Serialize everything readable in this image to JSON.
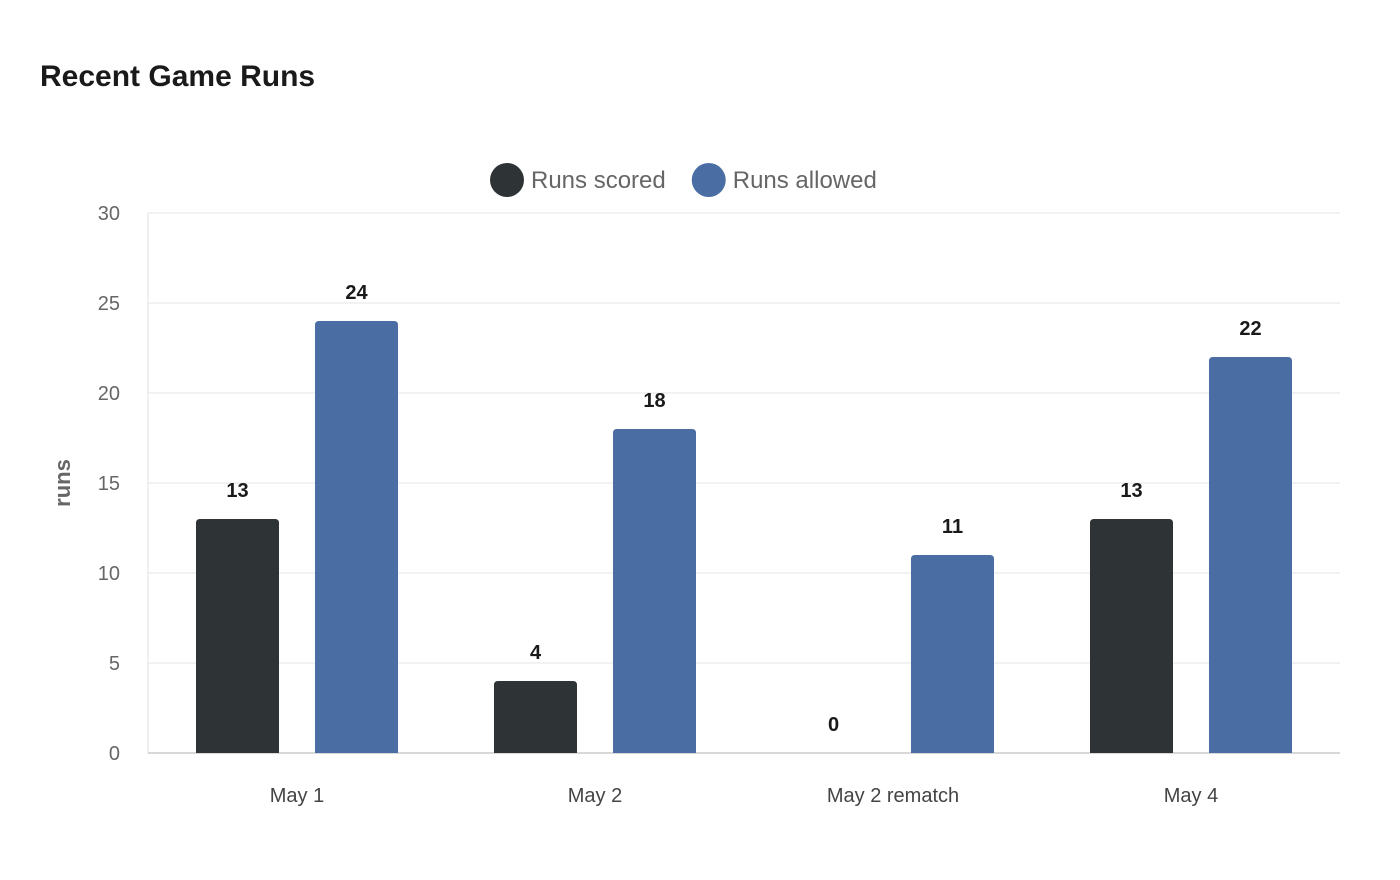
{
  "chart_data": {
    "type": "bar",
    "title": "Recent Game Runs",
    "xlabel": "",
    "ylabel": "runs",
    "ylim": [
      0,
      30
    ],
    "yticks": [
      0,
      5,
      10,
      15,
      20,
      25,
      30
    ],
    "grid": true,
    "legend_position": "top-center",
    "categories": [
      "May 1",
      "May 2",
      "May 2 rematch",
      "May 4"
    ],
    "series": [
      {
        "name": "Runs scored",
        "color": "#2e3436",
        "values": [
          13,
          4,
          0,
          13
        ]
      },
      {
        "name": "Runs allowed",
        "color": "#4a6ea3",
        "values": [
          24,
          18,
          11,
          22
        ]
      }
    ]
  }
}
